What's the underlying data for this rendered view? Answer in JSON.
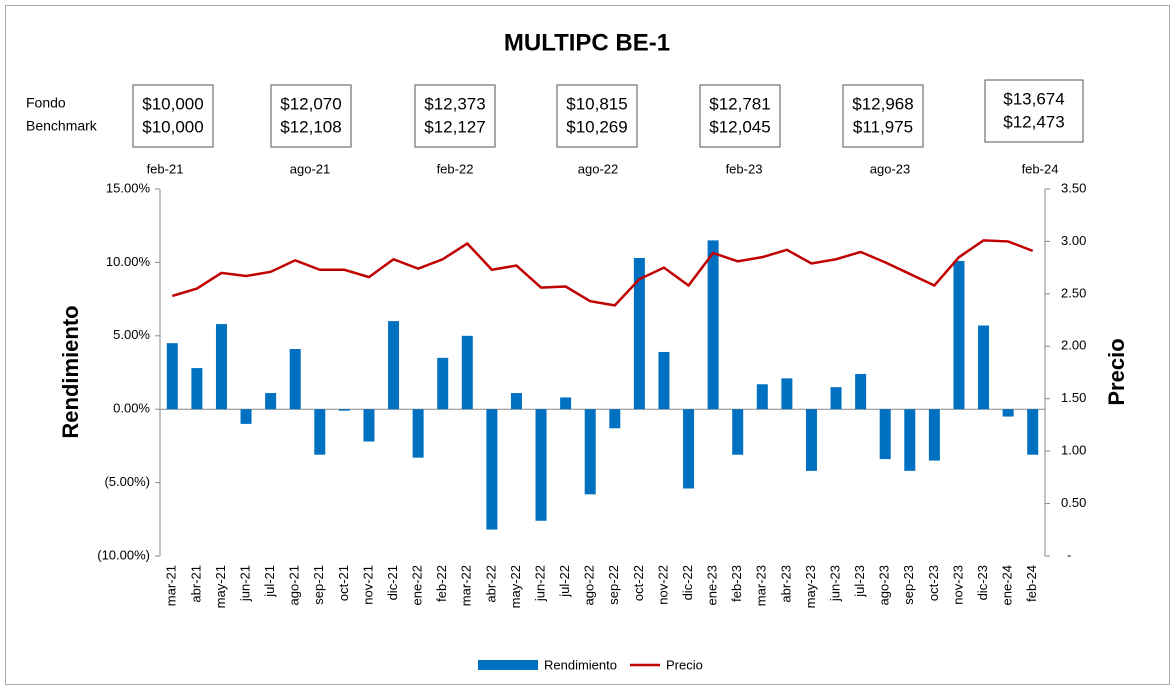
{
  "chart_data": {
    "type": "bar_line",
    "title": "MULTIPC BE-1",
    "ylabel": "Rendimiento",
    "y2label": "Precio",
    "summary_labels": [
      "Fondo",
      "Benchmark"
    ],
    "summary": [
      {
        "date": "feb-21",
        "fondo": "$10,000",
        "benchmark": "$10,000"
      },
      {
        "date": "ago-21",
        "fondo": "$12,070",
        "benchmark": "$12,108"
      },
      {
        "date": "feb-22",
        "fondo": "$12,373",
        "benchmark": "$12,127"
      },
      {
        "date": "ago-22",
        "fondo": "$10,815",
        "benchmark": "$10,269"
      },
      {
        "date": "feb-23",
        "fondo": "$12,781",
        "benchmark": "$12,045"
      },
      {
        "date": "ago-23",
        "fondo": "$12,968",
        "benchmark": "$11,975"
      },
      {
        "date": "feb-24",
        "fondo": "$13,674",
        "benchmark": "$12,473"
      }
    ],
    "categories": [
      "mar-21",
      "abr-21",
      "may-21",
      "jun-21",
      "jul-21",
      "ago-21",
      "sep-21",
      "oct-21",
      "nov-21",
      "dic-21",
      "ene-22",
      "feb-22",
      "mar-22",
      "abr-22",
      "may-22",
      "jun-22",
      "jul-22",
      "ago-22",
      "sep-22",
      "oct-22",
      "nov-22",
      "dic-22",
      "ene-23",
      "feb-23",
      "mar-23",
      "abr-23",
      "may-23",
      "jun-23",
      "jul-23",
      "ago-23",
      "sep-23",
      "oct-23",
      "nov-23",
      "dic-23",
      "ene-24",
      "feb-24"
    ],
    "series": [
      {
        "name": "Rendimiento",
        "type": "bar",
        "color": "#0070c0",
        "axis": "y",
        "values": [
          4.5,
          2.8,
          5.8,
          -1.0,
          1.1,
          4.1,
          -3.1,
          -0.1,
          -2.2,
          6.0,
          -3.3,
          3.5,
          5.0,
          -8.2,
          1.1,
          -7.6,
          0.8,
          -5.8,
          -1.3,
          10.3,
          3.9,
          -5.4,
          11.5,
          -3.1,
          1.7,
          2.1,
          -4.2,
          1.5,
          2.4,
          -3.4,
          -4.2,
          -3.5,
          10.1,
          5.7,
          -0.5,
          -3.1
        ]
      },
      {
        "name": "Precio",
        "type": "line",
        "color": "#c00000",
        "axis": "y2",
        "values": [
          2.48,
          2.55,
          2.7,
          2.67,
          2.71,
          2.82,
          2.73,
          2.73,
          2.66,
          2.83,
          2.74,
          2.83,
          2.98,
          2.73,
          2.77,
          2.56,
          2.57,
          2.43,
          2.39,
          2.64,
          2.75,
          2.58,
          2.89,
          2.81,
          2.85,
          2.92,
          2.79,
          2.83,
          2.9,
          2.8,
          2.69,
          2.58,
          2.85,
          3.01,
          3.0,
          2.91
        ]
      }
    ],
    "ylim": [
      -10,
      15
    ],
    "yticks": [
      {
        "value": -10,
        "label": "(10.00%)"
      },
      {
        "value": -5,
        "label": "(5.00%)"
      },
      {
        "value": 0,
        "label": "0.00%"
      },
      {
        "value": 5,
        "label": "5.00%"
      },
      {
        "value": 10,
        "label": "10.00%"
      },
      {
        "value": 15,
        "label": "15.00%"
      }
    ],
    "negative_tick_color": "#ff0000",
    "y2lim": [
      0,
      3.5
    ],
    "y2ticks": [
      {
        "value": 0,
        "label": "-"
      },
      {
        "value": 0.5,
        "label": "0.50"
      },
      {
        "value": 1,
        "label": "1.00"
      },
      {
        "value": 1.5,
        "label": "1.50"
      },
      {
        "value": 2,
        "label": "2.00"
      },
      {
        "value": 2.5,
        "label": "2.50"
      },
      {
        "value": 3,
        "label": "3.00"
      },
      {
        "value": 3.5,
        "label": "3.50"
      }
    ],
    "legend": "bottom"
  }
}
